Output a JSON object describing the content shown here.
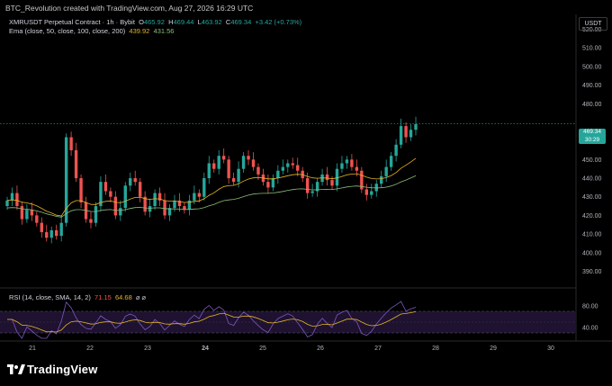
{
  "header": {
    "text": "BTC_Revolution created with TradingView.com, Aug 27, 2026 16:29 UTC"
  },
  "legend": {
    "symbol": "XMRUSDT Perpetual Contract · 1h · Bybit",
    "o_label": "O",
    "o": "465.92",
    "h_label": "H",
    "h": "469.44",
    "l_label": "L",
    "l": "463.92",
    "c_label": "C",
    "c": "469.34",
    "change": "+3.42 (+0.73%)",
    "ema_label": "Ema (close, 50, close, 100, close, 200)",
    "ema1": "439.92",
    "ema2": "431.56",
    "rsi_label": "RSI (14, close, SMA, 14, 2)",
    "rsi_value": "71.15",
    "rsi_ma": "64.68",
    "rsi_icons": "⌀ ⌀"
  },
  "price_scale": {
    "currency": "USDT",
    "ticks": [
      "520.00",
      "510.00",
      "500.00",
      "490.00",
      "480.00",
      "460.00",
      "450.00",
      "440.00",
      "430.00",
      "420.00",
      "410.00",
      "400.00",
      "390.00"
    ],
    "last_price": "469.34",
    "countdown": "30:29"
  },
  "rsi_scale": {
    "ticks": [
      "80.00",
      "40.00"
    ]
  },
  "time_axis": {
    "labels": [
      "21",
      "22",
      "23",
      "24",
      "25",
      "26",
      "27",
      "28",
      "29",
      "30"
    ]
  },
  "colors": {
    "up": "#26a69a",
    "down": "#ef5350",
    "ema50": "#e6b325",
    "ema100": "#8bbf7a",
    "rsi": "#7e57c2",
    "rsi_ma": "#e6b325"
  },
  "footer": {
    "brand": "TradingView",
    "logo": "tradingview-logo-icon"
  },
  "chart_data": {
    "type": "candlestick",
    "symbol": "XMRUSDT",
    "timeframe": "1h",
    "ylim": [
      382,
      528
    ],
    "x_days": [
      "21",
      "22",
      "23",
      "24",
      "25",
      "26",
      "27",
      "28",
      "29",
      "30"
    ],
    "candles_close": [
      428,
      432,
      425,
      418,
      423,
      420,
      416,
      411,
      408,
      412,
      409,
      416,
      462,
      455,
      440,
      427,
      418,
      416,
      425,
      438,
      433,
      430,
      420,
      424,
      436,
      440,
      438,
      430,
      422,
      425,
      432,
      428,
      420,
      424,
      428,
      425,
      423,
      428,
      432,
      430,
      440,
      448,
      445,
      452,
      450,
      440,
      438,
      445,
      452,
      450,
      446,
      442,
      438,
      435,
      440,
      444,
      446,
      448,
      447,
      444,
      440,
      432,
      433,
      438,
      442,
      439,
      436,
      445,
      448,
      450,
      446,
      444,
      434,
      431,
      433,
      437,
      441,
      446,
      452,
      458,
      468,
      462,
      466,
      469
    ]
  }
}
